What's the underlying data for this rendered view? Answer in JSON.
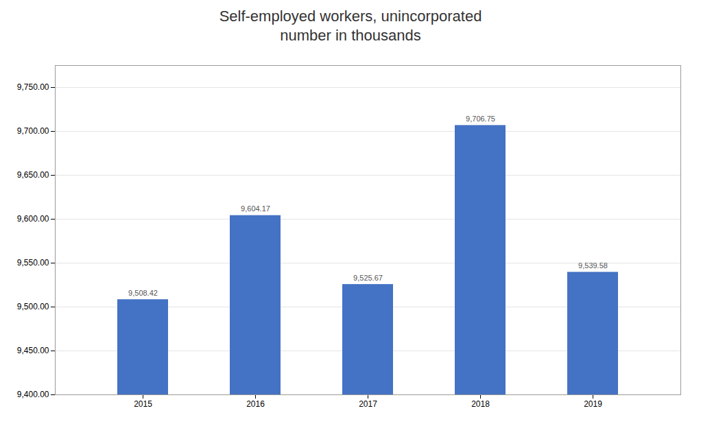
{
  "chart_data": {
    "type": "bar",
    "title": "Self-employed workers, unincorporated\nnumber in thousands",
    "categories": [
      "2015",
      "2016",
      "2017",
      "2018",
      "2019"
    ],
    "values": [
      9508.42,
      9604.17,
      9525.67,
      9706.75,
      9539.58
    ],
    "value_labels": [
      "9,508.42",
      "9,604.17",
      "9,525.67",
      "9,706.75",
      "9,539.58"
    ],
    "data_labels": true,
    "color": "#4472C4",
    "ylim": [
      9400,
      9775
    ],
    "yticks": [
      {
        "value": 9400,
        "label": "9,400.00"
      },
      {
        "value": 9450,
        "label": "9,450.00"
      },
      {
        "value": 9500,
        "label": "9,500.00"
      },
      {
        "value": 9550,
        "label": "9,550.00"
      },
      {
        "value": 9600,
        "label": "9,600.00"
      },
      {
        "value": 9650,
        "label": "9,650.00"
      },
      {
        "value": 9700,
        "label": "9,700.00"
      },
      {
        "value": 9750,
        "label": "9,750.00"
      }
    ],
    "grid": true
  }
}
